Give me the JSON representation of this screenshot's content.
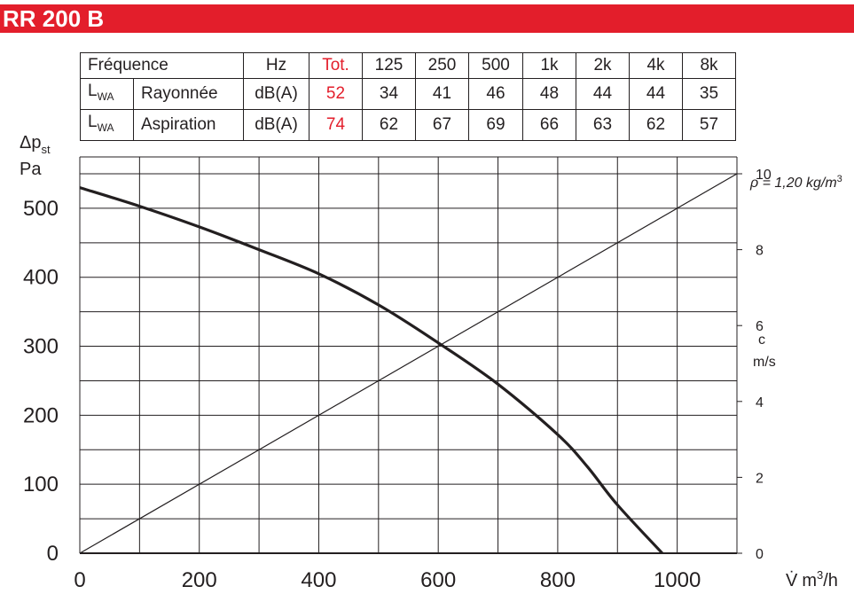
{
  "header": {
    "title": "RR 200 B",
    "bar_color": "#e31e2b"
  },
  "sound_table": {
    "header_label": "Fréquence",
    "unit_header": "Hz",
    "columns": [
      "Tot.",
      "125",
      "250",
      "500",
      "1k",
      "2k",
      "4k",
      "8k"
    ],
    "rows": [
      {
        "symbol": "L",
        "symbol_sub": "WA",
        "label": "Rayonnée",
        "unit": "dB(A)",
        "values": [
          "52",
          "34",
          "41",
          "46",
          "48",
          "44",
          "44",
          "35"
        ]
      },
      {
        "symbol": "L",
        "symbol_sub": "WA",
        "label": "Aspiration",
        "unit": "dB(A)",
        "values": [
          "74",
          "62",
          "67",
          "69",
          "66",
          "63",
          "62",
          "57"
        ]
      }
    ],
    "total_color": "#e31e2b"
  },
  "chart_data": {
    "type": "line",
    "ylabel_symbol": "Δp",
    "ylabel_sub": "st",
    "ylabel_unit": "Pa",
    "xlabel_symbol": "V̇",
    "xlabel_unit": "m",
    "xlabel_unit_sup": "3",
    "xlabel_unit_tail": "/h",
    "y2label_symbol": "c",
    "y2label_unit": "m/s",
    "density_note": "ρ = 1,20 kg/m",
    "density_note_sup": "3",
    "xlim": [
      0,
      1100
    ],
    "ylim": [
      0,
      550
    ],
    "y2lim": [
      0,
      10
    ],
    "x_ticks": [
      "0",
      "200",
      "400",
      "600",
      "800",
      "1000"
    ],
    "x_tick_values": [
      0,
      200,
      400,
      600,
      800,
      1000
    ],
    "y_ticks": [
      "0",
      "100",
      "200",
      "300",
      "400",
      "500"
    ],
    "y_tick_values": [
      0,
      100,
      200,
      300,
      400,
      500
    ],
    "y2_ticks": [
      "0",
      "2",
      "4",
      "6",
      "8",
      "10"
    ],
    "y2_tick_values": [
      0,
      2,
      4,
      6,
      8,
      10
    ],
    "grid": true,
    "series": [
      {
        "role": "pressure_curve",
        "x": [
          0,
          100,
          200,
          300,
          400,
          500,
          600,
          700,
          800,
          850,
          900,
          975
        ],
        "y": [
          530,
          503,
          473,
          440,
          405,
          360,
          305,
          245,
          172,
          125,
          70,
          0
        ]
      },
      {
        "role": "velocity_line",
        "axis": "y2",
        "x": [
          0,
          1100
        ],
        "y": [
          0,
          10
        ]
      }
    ]
  }
}
